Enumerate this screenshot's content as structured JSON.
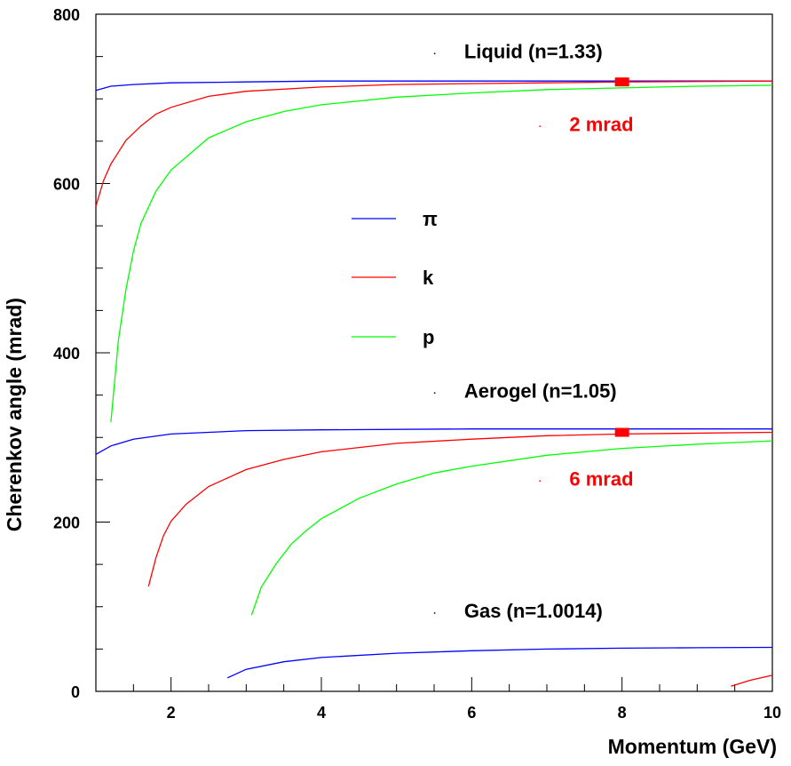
{
  "chart_data": {
    "type": "line",
    "xlabel": "Momentum (GeV)",
    "ylabel": "Cherenkov angle (mrad)",
    "xlim": [
      1,
      10
    ],
    "ylim": [
      0,
      800
    ],
    "x_ticks": [
      2,
      4,
      6,
      8,
      10
    ],
    "y_ticks": [
      0,
      200,
      400,
      600,
      800
    ],
    "grid": false,
    "legend": {
      "placement": "center-left",
      "entries": [
        {
          "label": "π",
          "color": "#0000ff"
        },
        {
          "label": "k",
          "color": "#ff0000"
        },
        {
          "label": "p",
          "color": "#00ff00"
        }
      ]
    },
    "annotations": [
      {
        "text": "Liquid (n=1.33)",
        "x": 5.9,
        "y": 748,
        "color": "#000000"
      },
      {
        "text": "2 mrad",
        "x": 7.3,
        "y": 662,
        "color": "#ff0000"
      },
      {
        "text": "Aerogel (n=1.05)",
        "x": 5.9,
        "y": 347,
        "color": "#000000"
      },
      {
        "text": "6 mrad",
        "x": 7.3,
        "y": 243,
        "color": "#ff0000"
      },
      {
        "text": "Gas (n=1.0014)",
        "x": 5.9,
        "y": 87,
        "color": "#000000"
      }
    ],
    "markers": [
      {
        "x": 8,
        "y": 720,
        "color": "#ff0000"
      },
      {
        "x": 8,
        "y": 306,
        "color": "#ff0000"
      }
    ],
    "series": [
      {
        "name": "Liquid π",
        "color": "#0000ff",
        "points": [
          [
            1.0,
            710
          ],
          [
            1.2,
            715
          ],
          [
            1.5,
            717
          ],
          [
            2.0,
            719
          ],
          [
            3,
            720
          ],
          [
            4,
            721
          ],
          [
            6,
            721
          ],
          [
            8,
            721
          ],
          [
            10,
            721
          ]
        ]
      },
      {
        "name": "Liquid k",
        "color": "#ff0000",
        "points": [
          [
            1.0,
            573
          ],
          [
            1.1,
            603
          ],
          [
            1.2,
            623
          ],
          [
            1.4,
            651
          ],
          [
            1.6,
            668
          ],
          [
            1.8,
            682
          ],
          [
            2.0,
            690
          ],
          [
            2.5,
            703
          ],
          [
            3,
            709
          ],
          [
            4,
            714
          ],
          [
            5,
            717
          ],
          [
            6,
            718
          ],
          [
            7,
            719
          ],
          [
            8,
            720
          ],
          [
            10,
            721
          ]
        ]
      },
      {
        "name": "Liquid p",
        "color": "#00ff00",
        "points": [
          [
            1.2,
            318
          ],
          [
            1.3,
            415
          ],
          [
            1.4,
            475
          ],
          [
            1.5,
            520
          ],
          [
            1.6,
            553
          ],
          [
            1.8,
            591
          ],
          [
            2.0,
            616
          ],
          [
            2.5,
            654
          ],
          [
            3,
            673
          ],
          [
            3.5,
            685
          ],
          [
            4,
            693
          ],
          [
            5,
            702
          ],
          [
            6,
            707
          ],
          [
            7,
            711
          ],
          [
            8,
            713
          ],
          [
            9,
            715
          ],
          [
            10,
            716
          ]
        ]
      },
      {
        "name": "Aerogel π",
        "color": "#0000ff",
        "points": [
          [
            1.0,
            280
          ],
          [
            1.2,
            290
          ],
          [
            1.5,
            298
          ],
          [
            2.0,
            304
          ],
          [
            3,
            308
          ],
          [
            4,
            309
          ],
          [
            6,
            310
          ],
          [
            8,
            310
          ],
          [
            10,
            310
          ]
        ]
      },
      {
        "name": "Aerogel k",
        "color": "#ff0000",
        "points": [
          [
            1.7,
            124
          ],
          [
            1.8,
            158
          ],
          [
            1.9,
            184
          ],
          [
            2.0,
            201
          ],
          [
            2.2,
            221
          ],
          [
            2.5,
            242
          ],
          [
            3,
            262
          ],
          [
            3.5,
            274
          ],
          [
            4,
            283
          ],
          [
            5,
            293
          ],
          [
            6,
            298
          ],
          [
            7,
            302
          ],
          [
            8,
            304
          ],
          [
            10,
            306
          ]
        ]
      },
      {
        "name": "Aerogel p",
        "color": "#00ff00",
        "points": [
          [
            3.07,
            90
          ],
          [
            3.2,
            123
          ],
          [
            3.4,
            151
          ],
          [
            3.6,
            174
          ],
          [
            3.8,
            190
          ],
          [
            4,
            204
          ],
          [
            4.5,
            228
          ],
          [
            5,
            245
          ],
          [
            5.5,
            258
          ],
          [
            6,
            266
          ],
          [
            7,
            279
          ],
          [
            8,
            287
          ],
          [
            9,
            292
          ],
          [
            10,
            296
          ]
        ]
      },
      {
        "name": "Gas π",
        "color": "#0000ff",
        "points": [
          [
            2.75,
            16
          ],
          [
            3,
            26
          ],
          [
            3.5,
            35
          ],
          [
            4,
            40
          ],
          [
            5,
            45
          ],
          [
            6,
            48
          ],
          [
            7,
            50
          ],
          [
            8,
            51
          ],
          [
            9,
            51.5
          ],
          [
            10,
            52
          ]
        ]
      },
      {
        "name": "Gas k",
        "color": "#ff0000",
        "points": [
          [
            9.45,
            6
          ],
          [
            9.7,
            13
          ],
          [
            10,
            19
          ]
        ]
      }
    ]
  }
}
